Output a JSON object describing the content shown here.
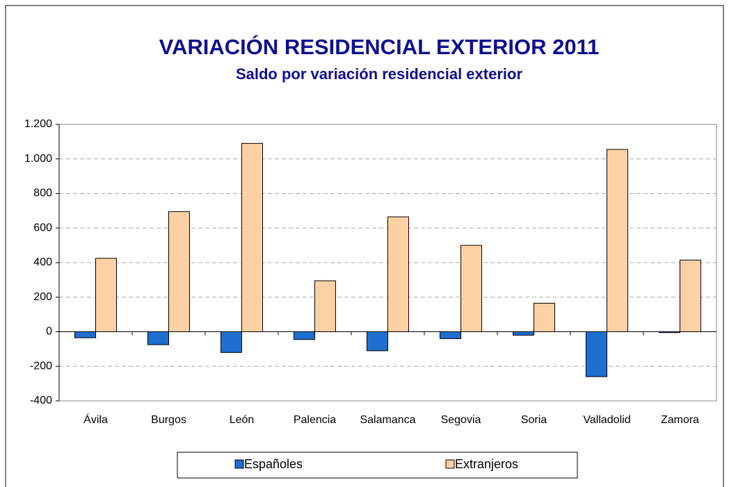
{
  "chart_data": {
    "type": "bar",
    "title": "VARIACIÓN RESIDENCIAL EXTERIOR 2011",
    "subtitle": "Saldo por variación residencial exterior",
    "categories": [
      "Ávila",
      "Burgos",
      "León",
      "Palencia",
      "Salamanca",
      "Segovia",
      "Soria",
      "Valladolid",
      "Zamora"
    ],
    "series": [
      {
        "name": "Españoles",
        "color": "#1f6fd1",
        "values": [
          -35,
          -75,
          -120,
          -45,
          -110,
          -40,
          -20,
          -260,
          -5
        ]
      },
      {
        "name": "Extranjeros",
        "color": "#fdd1a3",
        "values": [
          425,
          695,
          1090,
          295,
          665,
          500,
          165,
          1055,
          415
        ]
      }
    ],
    "ylim": [
      -400,
      1200
    ],
    "yticks": [
      -400,
      -200,
      0,
      200,
      400,
      600,
      800,
      {
        "value": 1000,
        "label": "1.000"
      },
      {
        "value": 1200,
        "label": "1.200"
      }
    ],
    "grid": true,
    "legend": "bottom"
  }
}
